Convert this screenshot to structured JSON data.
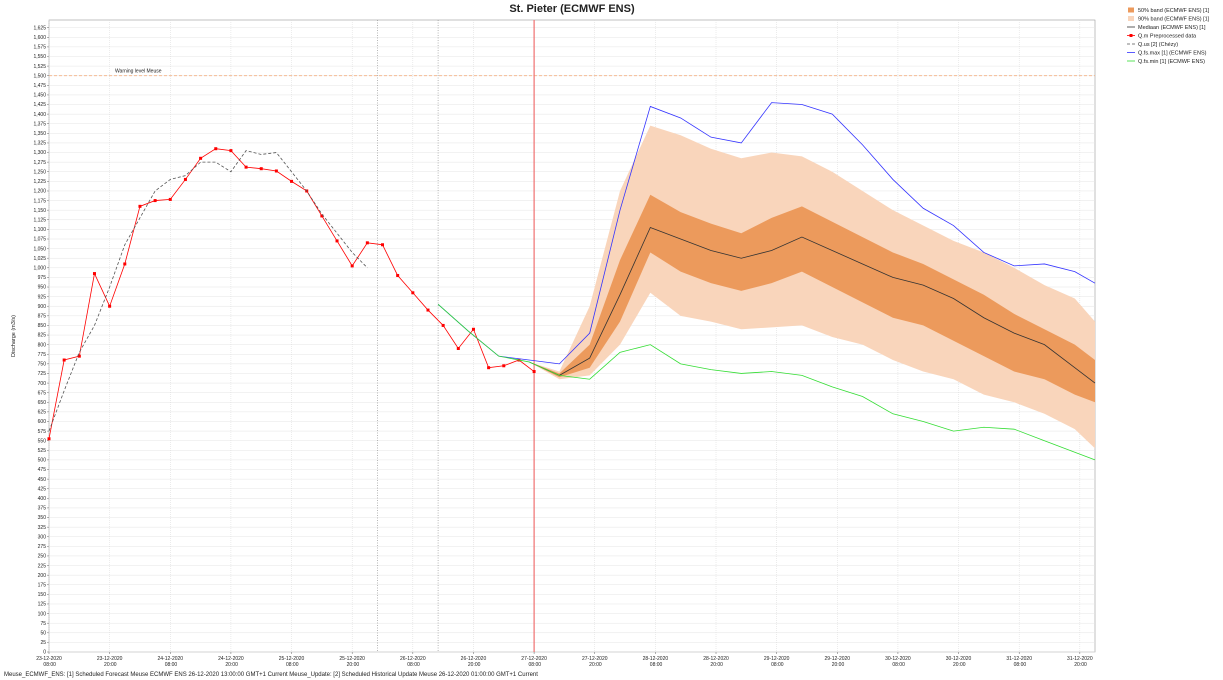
{
  "chart_data": {
    "type": "line",
    "title": "St. Pieter (ECMWF ENS)",
    "y_label": "Discharge (m3/s)",
    "footer": "Meuse_ECMWF_ENS: [1] Scheduled Forecast Meuse ECMWF ENS 26-12-2020 13:00:00 GMT+1 Current Meuse_Update: [2] Scheduled Historical Update Meuse 26-12-2020 01:00:00 GMT+1 Current",
    "legend": "top-right",
    "grid": true,
    "xlim": [
      "23-12-2020 08:00",
      "31-12-2020 23:00"
    ],
    "ylim": [
      0,
      1645
    ],
    "xticks": [
      "23-12-2020 08:00",
      "23-12-2020 20:00",
      "24-12-2020 08:00",
      "24-12-2020 20:00",
      "25-12-2020 08:00",
      "25-12-2020 20:00",
      "26-12-2020 08:00",
      "26-12-2020 20:00",
      "27-12-2020 08:00",
      "27-12-2020 20:00",
      "28-12-2020 08:00",
      "28-12-2020 20:00",
      "29-12-2020 08:00",
      "29-12-2020 20:00",
      "30-12-2020 08:00",
      "30-12-2020 20:00",
      "31-12-2020 08:00",
      "31-12-2020 20:00"
    ],
    "yticks": [
      0,
      25,
      50,
      75,
      100,
      125,
      150,
      175,
      200,
      225,
      250,
      275,
      300,
      325,
      350,
      375,
      400,
      425,
      450,
      475,
      500,
      525,
      550,
      575,
      600,
      625,
      650,
      675,
      700,
      725,
      750,
      775,
      800,
      825,
      850,
      875,
      900,
      925,
      950,
      975,
      {
        "value": 1000,
        "label": "1,000"
      },
      {
        "value": 1025,
        "label": "1,025"
      },
      {
        "value": 1050,
        "label": "1,050"
      },
      {
        "value": 1075,
        "label": "1,075"
      },
      {
        "value": 1100,
        "label": "1,100"
      },
      {
        "value": 1125,
        "label": "1,125"
      },
      {
        "value": 1150,
        "label": "1,150"
      },
      {
        "value": 1175,
        "label": "1,175"
      },
      {
        "value": 1200,
        "label": "1,200"
      },
      {
        "value": 1225,
        "label": "1,225"
      },
      {
        "value": 1250,
        "label": "1,250"
      },
      {
        "value": 1275,
        "label": "1,275"
      },
      {
        "value": 1300,
        "label": "1,300"
      },
      {
        "value": 1325,
        "label": "1,325"
      },
      {
        "value": 1350,
        "label": "1,350"
      },
      {
        "value": 1375,
        "label": "1,375"
      },
      {
        "value": 1400,
        "label": "1,400"
      },
      {
        "value": 1425,
        "label": "1,425"
      },
      {
        "value": 1450,
        "label": "1,450"
      },
      {
        "value": 1475,
        "label": "1,475"
      },
      {
        "value": 1500,
        "label": "1,500"
      },
      {
        "value": 1525,
        "label": "1,525"
      },
      {
        "value": 1550,
        "label": "1,550"
      },
      {
        "value": 1575,
        "label": "1,575"
      },
      {
        "value": 1600,
        "label": "1,600"
      },
      {
        "value": 1625,
        "label": "1,625"
      }
    ],
    "warning": {
      "value": 1500,
      "label": "Warning level Meuse",
      "color": "#f4b183"
    },
    "markers": [
      {
        "x": "26-12-2020 01:00",
        "style": "dotted",
        "color": "#888888"
      },
      {
        "x": "26-12-2020 13:00",
        "style": "dotted",
        "color": "#888888"
      },
      {
        "x": "27-12-2020 08:00",
        "style": "solid",
        "color": "#f07070"
      }
    ],
    "series": [
      {
        "name": "50% band (ECMWF ENS) [1]",
        "kind": "band",
        "color": "#ec9a5c",
        "x": [
          "26-12-2020 13:00",
          "26-12-2020 19:00",
          "27-12-2020 01:00",
          "27-12-2020 07:00",
          "27-12-2020 13:00",
          "27-12-2020 19:00",
          "28-12-2020 01:00",
          "28-12-2020 07:00",
          "28-12-2020 13:00",
          "28-12-2020 19:00",
          "29-12-2020 01:00",
          "29-12-2020 07:00",
          "29-12-2020 13:00",
          "29-12-2020 19:00",
          "30-12-2020 01:00",
          "30-12-2020 07:00",
          "30-12-2020 13:00",
          "30-12-2020 19:00",
          "31-12-2020 01:00",
          "31-12-2020 07:00",
          "31-12-2020 13:00",
          "31-12-2020 19:00",
          "31-12-2020 23:00"
        ],
        "low": [
          null,
          null,
          null,
          755,
          715,
          740,
          860,
          1040,
          990,
          960,
          940,
          960,
          990,
          950,
          910,
          870,
          850,
          810,
          770,
          730,
          710,
          670,
          650
        ],
        "high": [
          null,
          null,
          null,
          755,
          725,
          800,
          1020,
          1190,
          1145,
          1115,
          1090,
          1130,
          1160,
          1120,
          1080,
          1040,
          1010,
          970,
          930,
          880,
          840,
          800,
          760
        ]
      },
      {
        "name": "90% band (ECMWF ENS) [1]",
        "kind": "band",
        "color": "#f9d5bb",
        "x": [
          "26-12-2020 13:00",
          "26-12-2020 19:00",
          "27-12-2020 01:00",
          "27-12-2020 07:00",
          "27-12-2020 13:00",
          "27-12-2020 19:00",
          "28-12-2020 01:00",
          "28-12-2020 07:00",
          "28-12-2020 13:00",
          "28-12-2020 19:00",
          "29-12-2020 01:00",
          "29-12-2020 07:00",
          "29-12-2020 13:00",
          "29-12-2020 19:00",
          "30-12-2020 01:00",
          "30-12-2020 07:00",
          "30-12-2020 13:00",
          "30-12-2020 19:00",
          "31-12-2020 01:00",
          "31-12-2020 07:00",
          "31-12-2020 13:00",
          "31-12-2020 19:00",
          "31-12-2020 23:00"
        ],
        "low": [
          null,
          null,
          null,
          755,
          710,
          720,
          800,
          935,
          875,
          860,
          840,
          845,
          850,
          820,
          800,
          760,
          730,
          710,
          670,
          650,
          620,
          580,
          530
        ],
        "high": [
          null,
          null,
          null,
          755,
          730,
          900,
          1200,
          1370,
          1345,
          1310,
          1285,
          1300,
          1290,
          1250,
          1200,
          1150,
          1110,
          1070,
          1040,
          1000,
          955,
          920,
          860
        ]
      },
      {
        "name": "Mediaan (ECMWF ENS) [1]",
        "kind": "line",
        "color": "#333333",
        "x": [
          "26-12-2020 13:00",
          "26-12-2020 19:00",
          "27-12-2020 01:00",
          "27-12-2020 07:00",
          "27-12-2020 13:00",
          "27-12-2020 19:00",
          "28-12-2020 01:00",
          "28-12-2020 07:00",
          "28-12-2020 13:00",
          "28-12-2020 19:00",
          "29-12-2020 01:00",
          "29-12-2020 07:00",
          "29-12-2020 13:00",
          "29-12-2020 19:00",
          "30-12-2020 01:00",
          "30-12-2020 07:00",
          "30-12-2020 13:00",
          "30-12-2020 19:00",
          "31-12-2020 01:00",
          "31-12-2020 07:00",
          "31-12-2020 13:00",
          "31-12-2020 19:00",
          "31-12-2020 23:00"
        ],
        "values": [
          null,
          null,
          null,
          755,
          720,
          765,
          930,
          1105,
          1075,
          1045,
          1025,
          1045,
          1080,
          1045,
          1010,
          975,
          955,
          920,
          870,
          830,
          800,
          740,
          700
        ]
      },
      {
        "name": "Q.m Preprocessed data",
        "kind": "line",
        "color": "#ff0000",
        "marker": "square",
        "x": [
          "23-12-2020 08:00",
          "23-12-2020 11:00",
          "23-12-2020 14:00",
          "23-12-2020 17:00",
          "23-12-2020 20:00",
          "23-12-2020 23:00",
          "24-12-2020 02:00",
          "24-12-2020 05:00",
          "24-12-2020 08:00",
          "24-12-2020 11:00",
          "24-12-2020 14:00",
          "24-12-2020 17:00",
          "24-12-2020 20:00",
          "24-12-2020 23:00",
          "25-12-2020 02:00",
          "25-12-2020 05:00",
          "25-12-2020 08:00",
          "25-12-2020 11:00",
          "25-12-2020 14:00",
          "25-12-2020 17:00",
          "25-12-2020 20:00",
          "25-12-2020 23:00",
          "26-12-2020 02:00",
          "26-12-2020 05:00",
          "26-12-2020 08:00",
          "26-12-2020 11:00",
          "26-12-2020 14:00",
          "26-12-2020 17:00",
          "26-12-2020 20:00",
          "26-12-2020 23:00",
          "27-12-2020 02:00",
          "27-12-2020 05:00",
          "27-12-2020 08:00"
        ],
        "values": [
          555,
          760,
          770,
          985,
          900,
          1010,
          1160,
          1175,
          1178,
          1230,
          1285,
          1310,
          1305,
          1262,
          1258,
          1252,
          1225,
          1200,
          1135,
          1070,
          1005,
          1065,
          1060,
          980,
          935,
          890,
          850,
          790,
          840,
          740,
          745,
          760,
          730
        ]
      },
      {
        "name": "Q.us [2] (Chézy)",
        "kind": "line",
        "color": "#555555",
        "dash": "3,2",
        "x": [
          "23-12-2020 08:00",
          "23-12-2020 11:00",
          "23-12-2020 14:00",
          "23-12-2020 17:00",
          "23-12-2020 20:00",
          "23-12-2020 23:00",
          "24-12-2020 02:00",
          "24-12-2020 05:00",
          "24-12-2020 08:00",
          "24-12-2020 11:00",
          "24-12-2020 14:00",
          "24-12-2020 17:00",
          "24-12-2020 20:00",
          "24-12-2020 23:00",
          "25-12-2020 02:00",
          "25-12-2020 05:00",
          "25-12-2020 08:00",
          "25-12-2020 11:00",
          "25-12-2020 14:00",
          "25-12-2020 17:00",
          "25-12-2020 20:00",
          "25-12-2020 23:00"
        ],
        "values": [
          575,
          680,
          780,
          850,
          950,
          1060,
          1130,
          1200,
          1230,
          1240,
          1275,
          1275,
          1250,
          1305,
          1295,
          1300,
          1250,
          1200,
          1140,
          1090,
          1040,
          1000
        ]
      },
      {
        "name": "Q.fs.max [1] (ECMWF ENS)",
        "kind": "line",
        "color": "#3333ff",
        "x": [
          "26-12-2020 13:00",
          "26-12-2020 19:00",
          "27-12-2020 01:00",
          "27-12-2020 07:00",
          "27-12-2020 13:00",
          "27-12-2020 19:00",
          "28-12-2020 01:00",
          "28-12-2020 07:00",
          "28-12-2020 13:00",
          "28-12-2020 19:00",
          "29-12-2020 01:00",
          "29-12-2020 07:00",
          "29-12-2020 13:00",
          "29-12-2020 19:00",
          "30-12-2020 01:00",
          "30-12-2020 07:00",
          "30-12-2020 13:00",
          "30-12-2020 19:00",
          "31-12-2020 01:00",
          "31-12-2020 07:00",
          "31-12-2020 13:00",
          "31-12-2020 19:00",
          "31-12-2020 23:00"
        ],
        "values": [
          905,
          835,
          770,
          760,
          750,
          830,
          1150,
          1420,
          1390,
          1340,
          1325,
          1430,
          1425,
          1400,
          1320,
          1230,
          1155,
          1110,
          1040,
          1005,
          1010,
          990,
          960
        ]
      },
      {
        "name": "Q.fs.min [1] (ECMWF ENS)",
        "kind": "line",
        "color": "#33dd33",
        "x": [
          "26-12-2020 13:00",
          "26-12-2020 19:00",
          "27-12-2020 01:00",
          "27-12-2020 07:00",
          "27-12-2020 13:00",
          "27-12-2020 19:00",
          "28-12-2020 01:00",
          "28-12-2020 07:00",
          "28-12-2020 13:00",
          "28-12-2020 19:00",
          "29-12-2020 01:00",
          "29-12-2020 07:00",
          "29-12-2020 13:00",
          "29-12-2020 19:00",
          "30-12-2020 01:00",
          "30-12-2020 07:00",
          "30-12-2020 13:00",
          "30-12-2020 19:00",
          "31-12-2020 01:00",
          "31-12-2020 07:00",
          "31-12-2020 13:00",
          "31-12-2020 19:00",
          "31-12-2020 23:00"
        ],
        "values": [
          905,
          835,
          770,
          755,
          720,
          710,
          780,
          800,
          750,
          735,
          725,
          730,
          720,
          690,
          665,
          620,
          600,
          575,
          585,
          580,
          550,
          520,
          500
        ]
      }
    ]
  }
}
